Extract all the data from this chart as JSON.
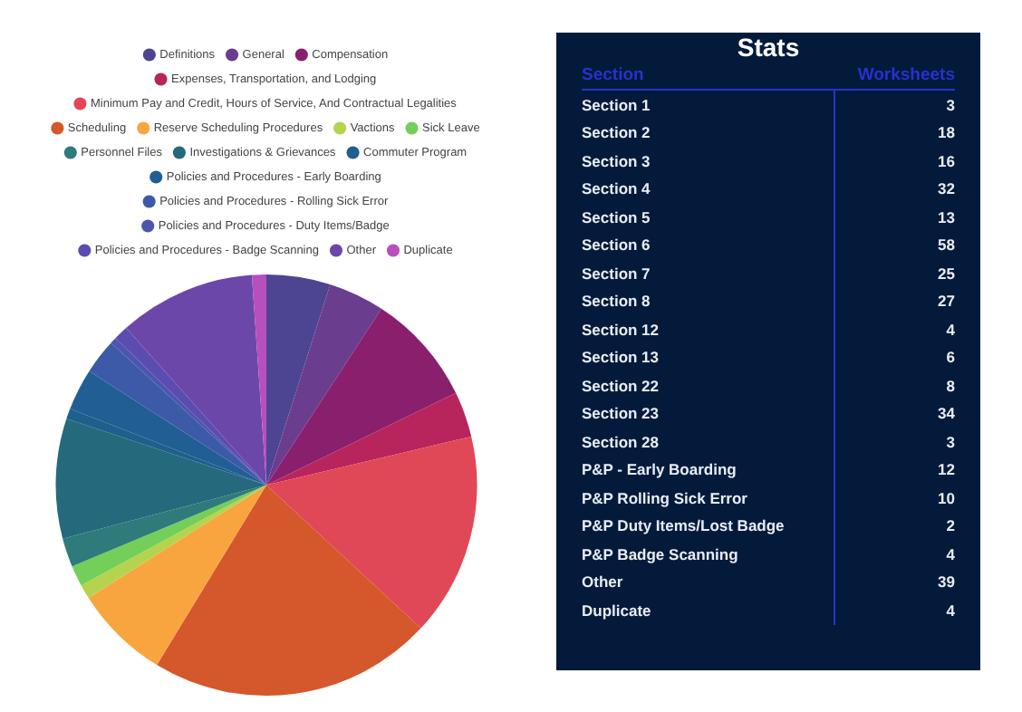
{
  "chart_data": [
    {
      "type": "pie",
      "legend": "top",
      "categories": [
        "Definitions",
        "General",
        "Compensation",
        "Expenses, Transportation, and Lodging",
        "Minimum Pay and Credit, Hours of Service, And Contractual Legalities",
        "Scheduling",
        "Reserve Scheduling Procedures",
        "Vactions",
        "Sick Leave",
        "Personnel Files",
        "Investigations & Grievances",
        "Commuter Program",
        "Policies and Procedures - Early Boarding",
        "Policies and Procedures - Rolling Sick Error",
        "Policies and Procedures - Duty Items/Badge",
        "Policies and Procedures - Badge Scanning",
        "Other",
        "Duplicate"
      ],
      "values": [
        4.9,
        4.3,
        8.6,
        3.5,
        15.6,
        21.8,
        7.3,
        1.1,
        1.6,
        2.2,
        9.2,
        0.8,
        3.2,
        2.7,
        0.5,
        1.1,
        10.5,
        1.1
      ],
      "colors": [
        "#4e4592",
        "#6a3d8e",
        "#8a1f6e",
        "#b8245c",
        "#e04858",
        "#d5572c",
        "#f9a53f",
        "#b5d34e",
        "#73cf5a",
        "#2f7a7a",
        "#256a7c",
        "#1f5f8b",
        "#215e94",
        "#3c5aa8",
        "#4e55ad",
        "#5b4cb0",
        "#6c47aa",
        "#b84fbf"
      ]
    },
    {
      "type": "other",
      "title": "Stats",
      "data_labels": true,
      "xlabel": "Section",
      "ylabel": "Worksheets",
      "categories": [
        "Section 1",
        "Section 2",
        "Section 3",
        "Section 4",
        "Section 5",
        "Section 6",
        "Section 7",
        "Section 8",
        "Section 12",
        "Section 13",
        "Section 22",
        "Section 23",
        "Section 28",
        "P&P - Early Boarding",
        "P&P Rolling Sick Error",
        "P&P Duty Items/Lost Badge",
        "P&P Badge Scanning",
        "Other",
        "Duplicate"
      ],
      "values": [
        3,
        18,
        16,
        32,
        13,
        58,
        25,
        27,
        4,
        6,
        8,
        34,
        3,
        12,
        10,
        2,
        4,
        39,
        4
      ]
    }
  ]
}
